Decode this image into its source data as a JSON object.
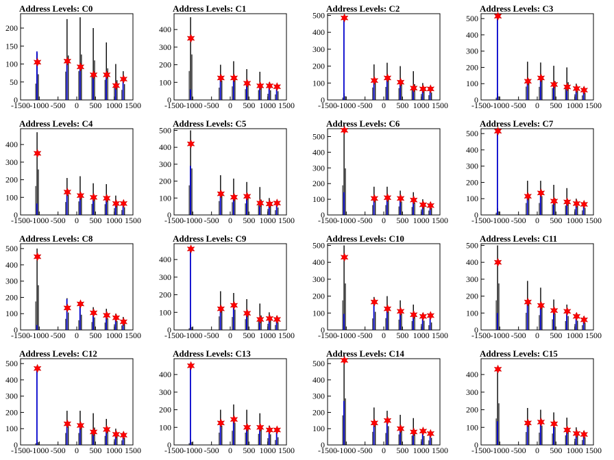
{
  "colors": {
    "background": "#ffffff",
    "black_series": "#000000",
    "blue_series": "#0000cc",
    "marker": "#ff0000"
  },
  "chart_data": [
    {
      "type": "bar",
      "title": "Address Levels: C0",
      "xlim": [
        -1500,
        1500
      ],
      "ylim": [
        0,
        240
      ],
      "xticks": [
        "-1500",
        "-1000",
        "-500",
        "0",
        "500",
        "1000",
        "1500"
      ],
      "yticks": [
        "0",
        "50",
        "100",
        "150",
        "200"
      ],
      "peaks_x": [
        -1050,
        -250,
        100,
        450,
        800,
        1050,
        1250
      ],
      "black_values": [
        130,
        225,
        230,
        200,
        160,
        100,
        80
      ],
      "blue_values": [
        135,
        110,
        95,
        70,
        75,
        40,
        60
      ],
      "marker_values": [
        105,
        108,
        92,
        70,
        70,
        40,
        58
      ]
    },
    {
      "type": "bar",
      "title": "Address Levels: C1",
      "xlim": [
        -1500,
        1500
      ],
      "ylim": [
        0,
        490
      ],
      "xticks": [
        "-1500",
        "-1000",
        "-500",
        "0",
        "500",
        "1000",
        "1500"
      ],
      "yticks": [
        "0",
        "100",
        "200",
        "300",
        "400"
      ],
      "peaks_x": [
        -1050,
        -250,
        100,
        450,
        800,
        1050,
        1250
      ],
      "black_values": [
        470,
        200,
        220,
        175,
        160,
        100,
        90
      ],
      "blue_values": [
        60,
        120,
        110,
        90,
        70,
        75,
        70
      ],
      "marker_values": [
        350,
        125,
        125,
        95,
        80,
        80,
        75
      ]
    },
    {
      "type": "bar",
      "title": "Address Levels: C2",
      "xlim": [
        -1500,
        1500
      ],
      "ylim": [
        0,
        510
      ],
      "xticks": [
        "-1500",
        "-1000",
        "-500",
        "0",
        "500",
        "1000",
        "1500"
      ],
      "yticks": [
        "0",
        "100",
        "200",
        "300",
        "400",
        "500"
      ],
      "peaks_x": [
        -1050,
        -250,
        100,
        450,
        800,
        1050,
        1250
      ],
      "black_values": [
        40,
        210,
        220,
        200,
        170,
        100,
        80
      ],
      "blue_values": [
        485,
        120,
        130,
        100,
        70,
        65,
        65
      ],
      "marker_values": [
        485,
        115,
        130,
        105,
        70,
        65,
        65
      ]
    },
    {
      "type": "bar",
      "title": "Address Levels: C3",
      "xlim": [
        -1500,
        1500
      ],
      "ylim": [
        0,
        530
      ],
      "xticks": [
        "-1500",
        "-1000",
        "-500",
        "0",
        "500",
        "1000",
        "1500"
      ],
      "yticks": [
        "0",
        "100",
        "200",
        "300",
        "400",
        "500"
      ],
      "peaks_x": [
        -1050,
        -250,
        100,
        450,
        800,
        1050,
        1250
      ],
      "black_values": [
        40,
        235,
        230,
        210,
        200,
        100,
        80
      ],
      "blue_values": [
        510,
        110,
        130,
        90,
        70,
        70,
        60
      ],
      "marker_values": [
        515,
        115,
        135,
        95,
        80,
        70,
        60
      ]
    },
    {
      "type": "bar",
      "title": "Address Levels: C4",
      "xlim": [
        -1500,
        1500
      ],
      "ylim": [
        0,
        490
      ],
      "xticks": [
        "-1500",
        "-1000",
        "-500",
        "0",
        "500",
        "1000",
        "1500"
      ],
      "yticks": [
        "0",
        "100",
        "200",
        "300",
        "400"
      ],
      "peaks_x": [
        -1050,
        -250,
        100,
        450,
        800,
        1050,
        1250
      ],
      "black_values": [
        470,
        210,
        220,
        180,
        175,
        110,
        80
      ],
      "blue_values": [
        65,
        130,
        110,
        100,
        90,
        60,
        65
      ],
      "marker_values": [
        350,
        130,
        110,
        100,
        95,
        65,
        65
      ]
    },
    {
      "type": "bar",
      "title": "Address Levels: C5",
      "xlim": [
        -1500,
        1500
      ],
      "ylim": [
        0,
        510
      ],
      "xticks": [
        "-1500",
        "-1000",
        "-500",
        "0",
        "500",
        "1000",
        "1500"
      ],
      "yticks": [
        "0",
        "100",
        "200",
        "300",
        "400",
        "500"
      ],
      "peaks_x": [
        -1050,
        -250,
        100,
        450,
        800,
        1050,
        1250
      ],
      "black_values": [
        500,
        235,
        215,
        195,
        165,
        100,
        80
      ],
      "blue_values": [
        290,
        120,
        100,
        110,
        70,
        65,
        70
      ],
      "marker_values": [
        420,
        125,
        105,
        110,
        70,
        65,
        70
      ]
    },
    {
      "type": "bar",
      "title": "Address Levels: C6",
      "xlim": [
        -1500,
        1500
      ],
      "ylim": [
        0,
        550
      ],
      "xticks": [
        "-1500",
        "-1000",
        "-500",
        "0",
        "500",
        "1000",
        "1500"
      ],
      "yticks": [
        "0",
        "100",
        "200",
        "300",
        "400",
        "500"
      ],
      "peaks_x": [
        -1050,
        -250,
        100,
        450,
        800,
        1050,
        1250
      ],
      "black_values": [
        540,
        180,
        180,
        155,
        145,
        100,
        80
      ],
      "blue_values": [
        145,
        100,
        110,
        100,
        90,
        60,
        60
      ],
      "marker_values": [
        540,
        105,
        110,
        105,
        95,
        65,
        60
      ]
    },
    {
      "type": "bar",
      "title": "Address Levels: C7",
      "xlim": [
        -1500,
        1500
      ],
      "ylim": [
        0,
        530
      ],
      "xticks": [
        "-1500",
        "-1000",
        "-500",
        "0",
        "500",
        "1000",
        "1500"
      ],
      "yticks": [
        "0",
        "100",
        "200",
        "300",
        "400",
        "500"
      ],
      "peaks_x": [
        -1050,
        -250,
        100,
        450,
        800,
        1050,
        1250
      ],
      "black_values": [
        40,
        210,
        210,
        185,
        165,
        100,
        80
      ],
      "blue_values": [
        520,
        110,
        130,
        80,
        70,
        60,
        60
      ],
      "marker_values": [
        515,
        115,
        135,
        85,
        80,
        70,
        65
      ]
    },
    {
      "type": "bar",
      "title": "Address Levels: C8",
      "xlim": [
        -1500,
        1500
      ],
      "ylim": [
        0,
        530
      ],
      "xticks": [
        "-1500",
        "-1000",
        "-500",
        "0",
        "500",
        "1000",
        "1500"
      ],
      "yticks": [
        "0",
        "100",
        "200",
        "300",
        "400",
        "500"
      ],
      "peaks_x": [
        -1050,
        -250,
        100,
        450,
        800,
        1050,
        1250
      ],
      "black_values": [
        500,
        195,
        170,
        140,
        130,
        100,
        80
      ],
      "blue_values": [
        30,
        190,
        165,
        100,
        90,
        80,
        50
      ],
      "marker_values": [
        450,
        135,
        160,
        105,
        90,
        75,
        50
      ]
    },
    {
      "type": "bar",
      "title": "Address Levels: C9",
      "xlim": [
        -1500,
        1500
      ],
      "ylim": [
        0,
        490
      ],
      "xticks": [
        "-1500",
        "-1000",
        "-500",
        "0",
        "500",
        "1000",
        "1500"
      ],
      "yticks": [
        "0",
        "100",
        "200",
        "300",
        "400"
      ],
      "peaks_x": [
        -1050,
        -250,
        100,
        450,
        800,
        1050,
        1250
      ],
      "black_values": [
        30,
        220,
        210,
        175,
        150,
        100,
        80
      ],
      "blue_values": [
        460,
        120,
        130,
        90,
        60,
        65,
        60
      ],
      "marker_values": [
        460,
        120,
        140,
        95,
        60,
        65,
        60
      ]
    },
    {
      "type": "bar",
      "title": "Address Levels: C10",
      "xlim": [
        -1500,
        1500
      ],
      "ylim": [
        0,
        510
      ],
      "xticks": [
        "-1500",
        "-1000",
        "-500",
        "0",
        "500",
        "1000",
        "1500"
      ],
      "yticks": [
        "0",
        "100",
        "200",
        "300",
        "400",
        "500"
      ],
      "peaks_x": [
        -1050,
        -250,
        100,
        450,
        800,
        1050,
        1250
      ],
      "black_values": [
        500,
        195,
        200,
        175,
        150,
        100,
        80
      ],
      "blue_values": [
        95,
        170,
        120,
        110,
        90,
        70,
        80
      ],
      "marker_values": [
        430,
        165,
        125,
        110,
        90,
        80,
        85
      ]
    },
    {
      "type": "bar",
      "title": "Address Levels: C11",
      "xlim": [
        -1500,
        1500
      ],
      "ylim": [
        0,
        510
      ],
      "xticks": [
        "-1500",
        "-1000",
        "-500",
        "0",
        "500",
        "1000",
        "1500"
      ],
      "yticks": [
        "0",
        "100",
        "200",
        "300",
        "400",
        "500"
      ],
      "peaks_x": [
        -1050,
        -250,
        100,
        450,
        800,
        1050,
        1250
      ],
      "black_values": [
        500,
        290,
        250,
        180,
        150,
        100,
        80
      ],
      "blue_values": [
        100,
        170,
        140,
        120,
        110,
        80,
        60
      ],
      "marker_values": [
        400,
        165,
        145,
        115,
        110,
        80,
        60
      ]
    },
    {
      "type": "bar",
      "title": "Address Levels: C12",
      "xlim": [
        -1500,
        1500
      ],
      "ylim": [
        0,
        530
      ],
      "xticks": [
        "-1500",
        "-1000",
        "-500",
        "0",
        "500",
        "1000",
        "1500"
      ],
      "yticks": [
        "0",
        "100",
        "200",
        "300",
        "400",
        "500"
      ],
      "peaks_x": [
        -1050,
        -250,
        100,
        450,
        800,
        1050,
        1250
      ],
      "black_values": [
        30,
        210,
        210,
        195,
        160,
        100,
        80
      ],
      "blue_values": [
        470,
        130,
        120,
        80,
        90,
        60,
        60
      ],
      "marker_values": [
        470,
        130,
        120,
        80,
        95,
        65,
        60
      ]
    },
    {
      "type": "bar",
      "title": "Address Levels: C13",
      "xlim": [
        -1500,
        1500
      ],
      "ylim": [
        0,
        490
      ],
      "xticks": [
        "-1500",
        "-1000",
        "-500",
        "0",
        "500",
        "1000",
        "1500"
      ],
      "yticks": [
        "0",
        "100",
        "200",
        "300",
        "400"
      ],
      "peaks_x": [
        -1050,
        -250,
        100,
        450,
        800,
        1050,
        1250
      ],
      "black_values": [
        30,
        200,
        230,
        200,
        180,
        110,
        80
      ],
      "blue_values": [
        450,
        120,
        145,
        100,
        100,
        80,
        80
      ],
      "marker_values": [
        450,
        125,
        145,
        100,
        100,
        85,
        85
      ]
    },
    {
      "type": "bar",
      "title": "Address Levels: C14",
      "xlim": [
        -1500,
        1500
      ],
      "ylim": [
        0,
        530
      ],
      "xticks": [
        "-1500",
        "-1000",
        "-500",
        "0",
        "500",
        "1000",
        "1500"
      ],
      "yticks": [
        "0",
        "100",
        "200",
        "300",
        "400",
        "500"
      ],
      "peaks_x": [
        -1050,
        -250,
        100,
        450,
        800,
        1050,
        1250
      ],
      "black_values": [
        520,
        230,
        210,
        185,
        165,
        100,
        80
      ],
      "blue_values": [
        270,
        140,
        150,
        100,
        80,
        80,
        70
      ],
      "marker_values": [
        520,
        135,
        150,
        100,
        80,
        85,
        70
      ]
    },
    {
      "type": "bar",
      "title": "Address Levels: C15",
      "xlim": [
        -1500,
        1500
      ],
      "ylim": [
        0,
        490
      ],
      "xticks": [
        "-1500",
        "-1000",
        "-500",
        "0",
        "500",
        "1000",
        "1500"
      ],
      "yticks": [
        "0",
        "100",
        "200",
        "300",
        "400"
      ],
      "peaks_x": [
        -1050,
        -250,
        100,
        450,
        800,
        1050,
        1250
      ],
      "black_values": [
        430,
        210,
        200,
        185,
        155,
        100,
        80
      ],
      "blue_values": [
        135,
        120,
        130,
        110,
        80,
        60,
        60
      ],
      "marker_values": [
        430,
        125,
        130,
        120,
        85,
        65,
        60
      ]
    }
  ]
}
